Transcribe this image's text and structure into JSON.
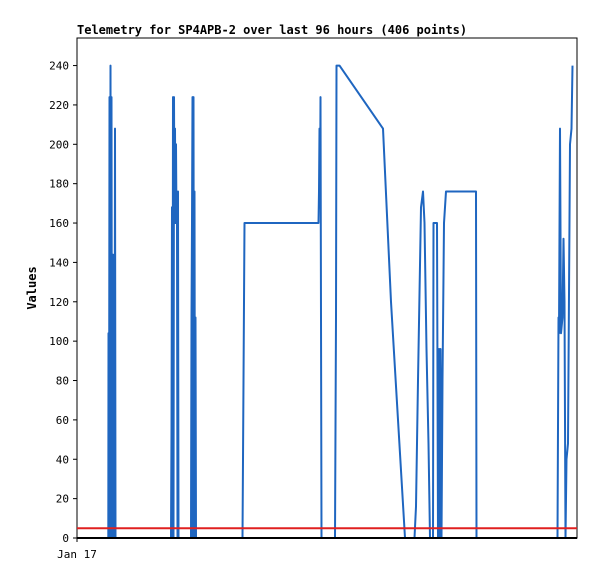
{
  "chart_data": {
    "type": "line",
    "title": "Telemetry for SP4APB-2 over last 96 hours (406 points)",
    "xlabel": "",
    "ylabel": "Values",
    "x_tick_labels": [
      "Jan 17"
    ],
    "y_ticks": [
      0,
      20,
      40,
      60,
      80,
      100,
      120,
      140,
      160,
      180,
      200,
      220,
      240
    ],
    "xlim": [
      0,
      100
    ],
    "ylim": [
      0,
      254
    ],
    "grid": false,
    "legend": "none",
    "series": [
      {
        "color": "#1f66c0",
        "points": [
          [
            6.25,
            0
          ],
          [
            6.3,
            104
          ],
          [
            6.4,
            0
          ],
          [
            6.5,
            224
          ],
          [
            6.6,
            0
          ],
          [
            6.7,
            240
          ],
          [
            6.8,
            0
          ],
          [
            6.9,
            224
          ],
          [
            7.0,
            0
          ],
          [
            7.1,
            144
          ],
          [
            7.2,
            0
          ],
          [
            7.3,
            128
          ],
          [
            7.35,
            0
          ],
          [
            7.45,
            144
          ],
          [
            7.5,
            0
          ],
          [
            7.6,
            208
          ],
          [
            7.7,
            0
          ],
          [
            18.8,
            0
          ],
          [
            18.9,
            56
          ],
          [
            19.0,
            168
          ],
          [
            19.1,
            0
          ],
          [
            19.2,
            224
          ],
          [
            19.3,
            0
          ],
          [
            19.4,
            224
          ],
          [
            19.5,
            160
          ],
          [
            19.6,
            208
          ],
          [
            19.7,
            160
          ],
          [
            19.8,
            200
          ],
          [
            19.9,
            160
          ],
          [
            20.0,
            160
          ],
          [
            20.1,
            0
          ],
          [
            20.2,
            176
          ],
          [
            20.3,
            0
          ],
          [
            22.8,
            0
          ],
          [
            22.9,
            112
          ],
          [
            23.0,
            160
          ],
          [
            23.1,
            224
          ],
          [
            23.2,
            0
          ],
          [
            23.3,
            224
          ],
          [
            23.4,
            0
          ],
          [
            23.5,
            176
          ],
          [
            23.6,
            0
          ],
          [
            23.7,
            112
          ],
          [
            23.8,
            0
          ],
          [
            33.1,
            0
          ],
          [
            33.3,
            80
          ],
          [
            33.5,
            160
          ],
          [
            48.3,
            160
          ],
          [
            48.4,
            176
          ],
          [
            48.5,
            208
          ],
          [
            48.6,
            168
          ],
          [
            48.7,
            224
          ],
          [
            48.8,
            112
          ],
          [
            48.9,
            0
          ],
          [
            51.6,
            0
          ],
          [
            51.8,
            112
          ],
          [
            51.9,
            240
          ],
          [
            52.5,
            240
          ],
          [
            61.2,
            208
          ],
          [
            62.8,
            120
          ],
          [
            65.6,
            0
          ],
          [
            67.5,
            0
          ],
          [
            67.8,
            16
          ],
          [
            68.2,
            80
          ],
          [
            68.8,
            168
          ],
          [
            69.2,
            176
          ],
          [
            69.5,
            160
          ],
          [
            69.9,
            96
          ],
          [
            70.3,
            48
          ],
          [
            70.6,
            0
          ],
          [
            71.2,
            0
          ],
          [
            71.3,
            160
          ],
          [
            72.0,
            160
          ],
          [
            72.2,
            0
          ],
          [
            72.4,
            96
          ],
          [
            72.6,
            0
          ],
          [
            72.7,
            96
          ],
          [
            72.9,
            0
          ],
          [
            73.1,
            80
          ],
          [
            73.4,
            160
          ],
          [
            73.8,
            176
          ],
          [
            79.8,
            176
          ],
          [
            79.9,
            0
          ],
          [
            96.1,
            0
          ],
          [
            96.3,
            112
          ],
          [
            96.4,
            104
          ],
          [
            96.6,
            208
          ],
          [
            96.8,
            104
          ],
          [
            97.1,
            112
          ],
          [
            97.3,
            152
          ],
          [
            97.5,
            120
          ],
          [
            97.7,
            0
          ],
          [
            97.9,
            40
          ],
          [
            98.2,
            48
          ],
          [
            98.6,
            200
          ],
          [
            98.9,
            208
          ],
          [
            99.1,
            240
          ]
        ]
      },
      {
        "color": "#1f66c0",
        "points": [
          [
            6.1,
            0
          ],
          [
            8.4,
            0
          ],
          [
            18.6,
            0
          ],
          [
            20.5,
            0
          ],
          [
            22.6,
            0
          ],
          [
            24.0,
            0
          ],
          [
            89.0,
            0
          ],
          [
            99.1,
            0
          ]
        ]
      },
      {
        "color": "#e02020",
        "points": [
          [
            0,
            5
          ],
          [
            100,
            5
          ]
        ]
      },
      {
        "color": "#000000",
        "points": [
          [
            0,
            0
          ],
          [
            100,
            0
          ]
        ]
      }
    ]
  }
}
